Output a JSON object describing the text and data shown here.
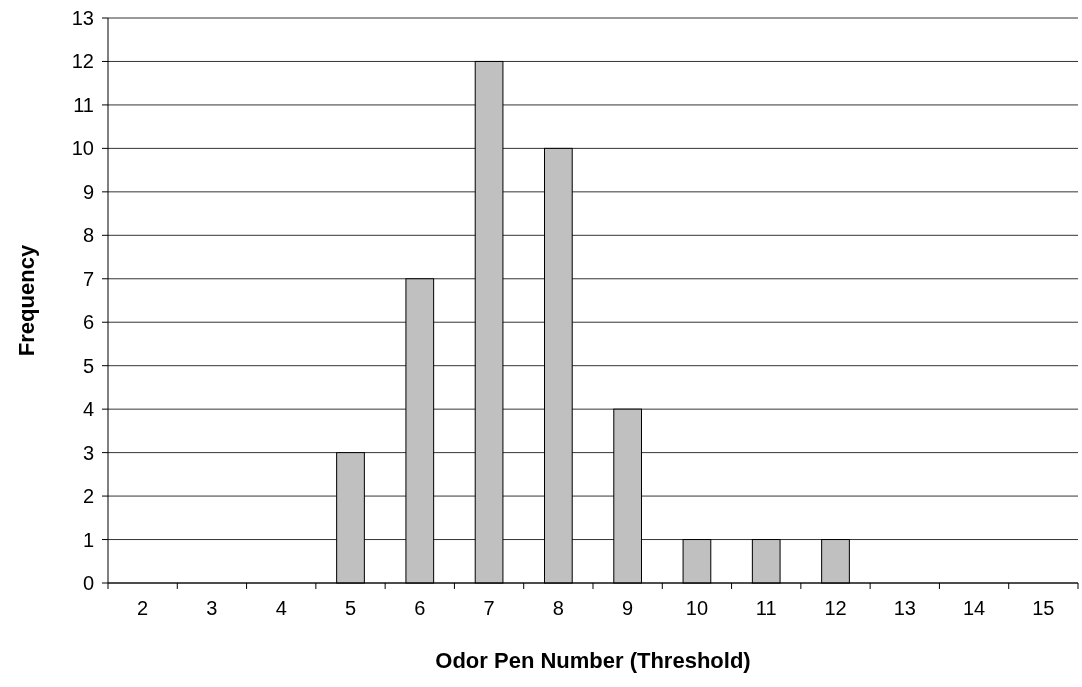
{
  "chart_data": {
    "type": "bar",
    "xlabel": "Odor Pen Number (Threshold)",
    "ylabel": "Frequency",
    "categories": [
      "2",
      "3",
      "4",
      "5",
      "6",
      "7",
      "8",
      "9",
      "10",
      "11",
      "12",
      "13",
      "14",
      "15"
    ],
    "values": [
      0,
      0,
      0,
      3,
      7,
      12,
      10,
      4,
      1,
      1,
      1,
      0,
      0,
      0
    ],
    "color": "#c0c0c0",
    "ylim": [
      0,
      13
    ],
    "yticks": [
      0,
      1,
      2,
      3,
      4,
      5,
      6,
      7,
      8,
      9,
      10,
      11,
      12,
      13
    ],
    "grid": "y"
  }
}
